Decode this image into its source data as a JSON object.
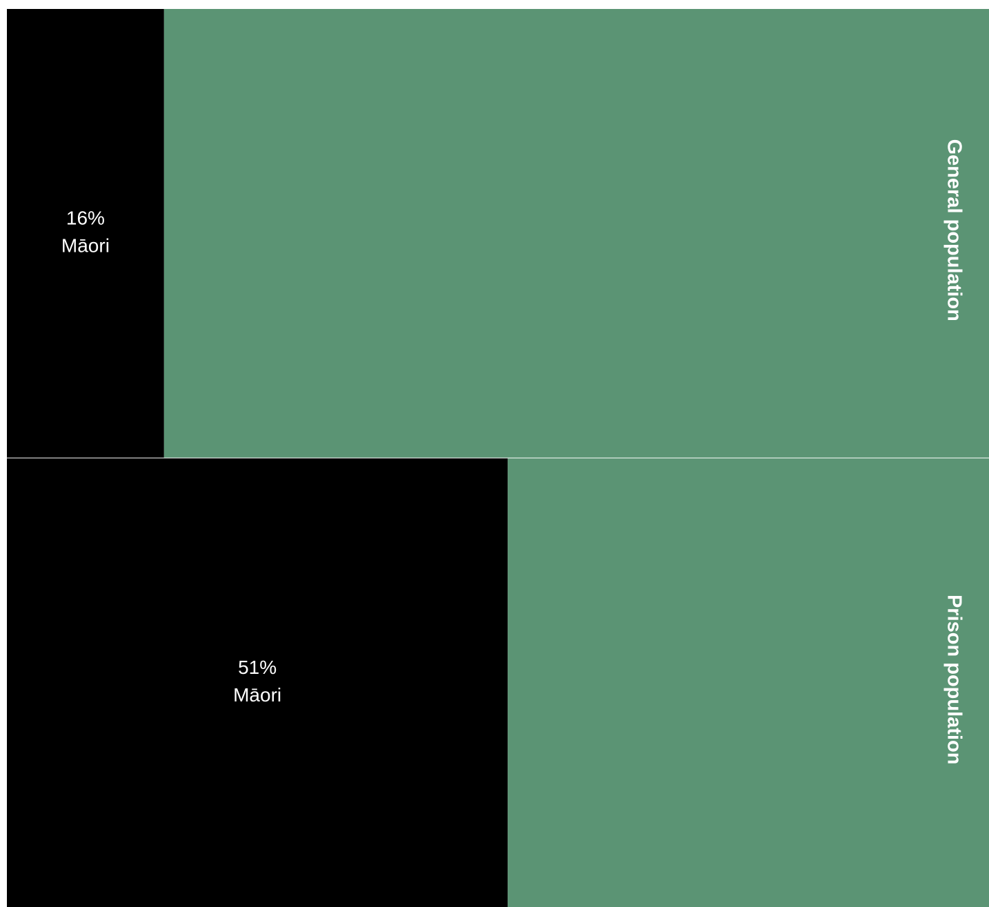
{
  "chart_data": {
    "type": "bar",
    "orientation": "horizontal",
    "stacked": true,
    "rows": [
      {
        "label": "General population",
        "maori_percent": 16,
        "maori_label": "Māori"
      },
      {
        "label": "Prison population",
        "maori_percent": 51,
        "maori_label": "Māori"
      }
    ],
    "series": [
      {
        "values": [
          16,
          51
        ],
        "color": "#000000"
      },
      {
        "values": [
          84,
          49
        ],
        "color": "#5b9474"
      }
    ],
    "xlim": [
      0,
      100
    ]
  },
  "colors": {
    "maori": "#000000",
    "rest": "#5b9474",
    "divider": "#ffffff"
  }
}
